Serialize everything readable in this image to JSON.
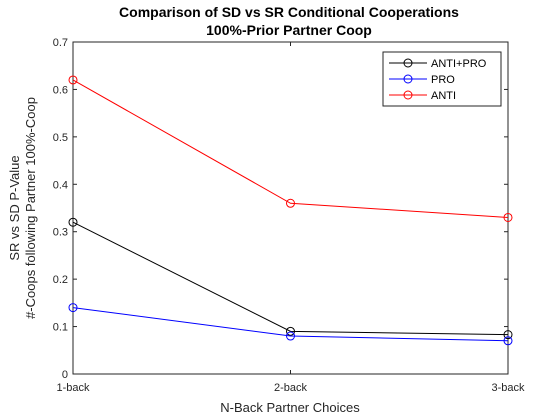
{
  "chart_data": {
    "type": "line",
    "title": [
      "Comparison of SD vs SR Conditional Cooperations",
      "100%-Prior Partner Coop"
    ],
    "xlabel": "N-Back Partner Choices",
    "ylabel": [
      "SR vs SD P-Value",
      "#-Coops following Partner 100%-Coop"
    ],
    "categories": [
      "1-back",
      "2-back",
      "3-back"
    ],
    "ylim": [
      0,
      0.7
    ],
    "yticks": [
      0,
      0.1,
      0.2,
      0.3,
      0.4,
      0.5,
      0.6,
      0.7
    ],
    "ytick_labels": [
      "0",
      "0.1",
      "0.2",
      "0.3",
      "0.4",
      "0.5",
      "0.6",
      "0.7"
    ],
    "grid": false,
    "legend_position": "top-right",
    "series": [
      {
        "name": "ANTI+PRO",
        "color": "#000000",
        "values": [
          0.32,
          0.09,
          0.083
        ]
      },
      {
        "name": "PRO",
        "color": "#0000ff",
        "values": [
          0.14,
          0.08,
          0.07
        ]
      },
      {
        "name": "ANTI",
        "color": "#ff0000",
        "values": [
          0.62,
          0.36,
          0.33
        ]
      }
    ]
  }
}
